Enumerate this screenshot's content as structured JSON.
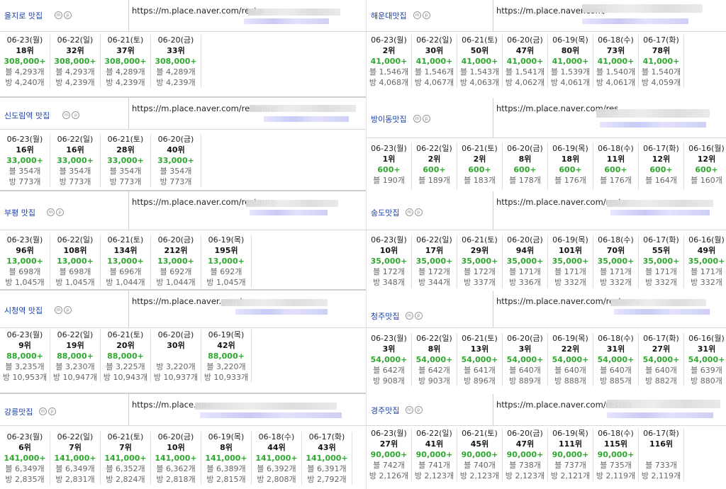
{
  "left": [
    {
      "keyword": "을지로 맛집",
      "url": "https://m.place.naver.com/resta",
      "days": [
        {
          "date": "06-23(월)",
          "rank": "18위",
          "count": "308,000+",
          "blog": "블 4,293개",
          "bang": "방 4,240개"
        },
        {
          "date": "06-22(일)",
          "rank": "32위",
          "count": "308,000+",
          "blog": "블 4,293개",
          "bang": "방 4,239개"
        },
        {
          "date": "06-21(토)",
          "rank": "37위",
          "count": "308,000+",
          "blog": "블 4,289개",
          "bang": "방 4,239개"
        },
        {
          "date": "06-20(금)",
          "rank": "33위",
          "count": "308,000+",
          "blog": "블 4,289개",
          "bang": "방 4,239개"
        }
      ]
    },
    {
      "keyword": "신도림역 맛집",
      "url": "https://m.place.naver.com/restaurar",
      "days": [
        {
          "date": "06-23(월)",
          "rank": "16위",
          "count": "33,000+",
          "blog": "블 354개",
          "bang": "방 773개"
        },
        {
          "date": "06-22(일)",
          "rank": "16위",
          "count": "33,000+",
          "blog": "블 354개",
          "bang": "방 773개"
        },
        {
          "date": "06-21(토)",
          "rank": "28위",
          "count": "33,000+",
          "blog": "블 354개",
          "bang": "방 773개"
        },
        {
          "date": "06-20(금)",
          "rank": "40위",
          "count": "33,000+",
          "blog": "블 354개",
          "bang": "방 773개"
        }
      ]
    },
    {
      "keyword": "부평 맛집",
      "url": "https://m.place.naver.com/restaura",
      "days": [
        {
          "date": "06-23(월)",
          "rank": "96위",
          "count": "13,000+",
          "blog": "블 698개",
          "bang": "방 1,045개"
        },
        {
          "date": "06-22(일)",
          "rank": "108위",
          "count": "13,000+",
          "blog": "블 698개",
          "bang": "방 1,045개"
        },
        {
          "date": "06-21(토)",
          "rank": "134위",
          "count": "13,000+",
          "blog": "블 696개",
          "bang": "방 1,044개"
        },
        {
          "date": "06-20(금)",
          "rank": "212위",
          "count": "13,000+",
          "blog": "블 692개",
          "bang": "방 1,044개"
        },
        {
          "date": "06-19(목)",
          "rank": "195위",
          "count": "13,000+",
          "blog": "블 692개",
          "bang": "방 1,045개"
        }
      ]
    },
    {
      "keyword": "시청역 맛집",
      "url": "https://m.place.naver.com/",
      "days": [
        {
          "date": "06-23(월)",
          "rank": "9위",
          "count": "88,000+",
          "blog": "블 3,235개",
          "bang": "방 10,953개"
        },
        {
          "date": "06-22(일)",
          "rank": "19위",
          "count": "88,000+",
          "blog": "블 3,230개",
          "bang": "방 10,947개"
        },
        {
          "date": "06-21(토)",
          "rank": "20위",
          "count": "88,000+",
          "blog": "블 3,225개",
          "bang": "방 10,943개"
        },
        {
          "date": "06-20(금)",
          "rank": "30위",
          "count": "",
          "blog": "방 3,220개",
          "bang": "방 10,937개"
        },
        {
          "date": "06-19(목)",
          "rank": "42위",
          "count": "88,000+",
          "blog": "블 3,220개",
          "bang": "방 10,933개"
        }
      ]
    },
    {
      "keyword": "강릉맛집",
      "url": "https://m.place.nav",
      "days": [
        {
          "date": "06-23(월)",
          "rank": "6위",
          "count": "141,000+",
          "blog": "블 6,349개",
          "bang": "방 2,835개"
        },
        {
          "date": "06-22(일)",
          "rank": "7위",
          "count": "141,000+",
          "blog": "블 6,349개",
          "bang": "방 2,831개"
        },
        {
          "date": "06-21(토)",
          "rank": "7위",
          "count": "141,000+",
          "blog": "블 6,352개",
          "bang": "방 2,824개"
        },
        {
          "date": "06-20(금)",
          "rank": "10위",
          "count": "141,000+",
          "blog": "블 6,362개",
          "bang": "방 2,818개"
        },
        {
          "date": "06-19(목)",
          "rank": "8위",
          "count": "141,000+",
          "blog": "블 6,389개",
          "bang": "방 2,815개"
        },
        {
          "date": "06-18(수)",
          "rank": "44위",
          "count": "141,000+",
          "blog": "블 6,392개",
          "bang": "방 2,808개"
        },
        {
          "date": "06-17(화)",
          "rank": "43위",
          "count": "141,000+",
          "blog": "블 6,391개",
          "bang": "방 2,792개"
        }
      ]
    }
  ],
  "right": [
    {
      "keyword": "해운대맛집",
      "url": "https://m.place.naver.com/",
      "days": [
        {
          "date": "06-23(월)",
          "rank": "2위",
          "count": "41,000+",
          "blog": "블 1,546개",
          "bang": "방 4,068개"
        },
        {
          "date": "06-22(일)",
          "rank": "30위",
          "count": "41,000+",
          "blog": "블 1,546개",
          "bang": "방 4,067개"
        },
        {
          "date": "06-21(토)",
          "rank": "50위",
          "count": "41,000+",
          "blog": "블 1,543개",
          "bang": "방 4,063개"
        },
        {
          "date": "06-20(금)",
          "rank": "47위",
          "count": "41,000+",
          "blog": "블 1,541개",
          "bang": "방 4,062개"
        },
        {
          "date": "06-19(목)",
          "rank": "80위",
          "count": "41,000+",
          "blog": "블 1,539개",
          "bang": "방 4,061개"
        },
        {
          "date": "06-18(수)",
          "rank": "73위",
          "count": "41,000+",
          "blog": "블 1,540개",
          "bang": "방 4,061개"
        },
        {
          "date": "06-17(화)",
          "rank": "78위",
          "count": "41,000+",
          "blog": "블 1,540개",
          "bang": "방 4,059개"
        }
      ]
    },
    {
      "keyword": "방이동맛집",
      "url": "https://m.place.naver.com/res",
      "days": [
        {
          "date": "06-23(월)",
          "rank": "1위",
          "count": "600+",
          "blog": "블 190개",
          "bang": ""
        },
        {
          "date": "06-22(일)",
          "rank": "2위",
          "count": "600+",
          "blog": "블 189개",
          "bang": ""
        },
        {
          "date": "06-21(토)",
          "rank": "2위",
          "count": "600+",
          "blog": "블 183개",
          "bang": ""
        },
        {
          "date": "06-20(금)",
          "rank": "8위",
          "count": "600+",
          "blog": "블 178개",
          "bang": ""
        },
        {
          "date": "06-19(목)",
          "rank": "18위",
          "count": "600+",
          "blog": "블 176개",
          "bang": ""
        },
        {
          "date": "06-18(수)",
          "rank": "11위",
          "count": "600+",
          "blog": "블 176개",
          "bang": ""
        },
        {
          "date": "06-17(화)",
          "rank": "12위",
          "count": "600+",
          "blog": "블 164개",
          "bang": ""
        },
        {
          "date": "06-16(월)",
          "rank": "12위",
          "count": "600+",
          "blog": "블 160개",
          "bang": ""
        }
      ]
    },
    {
      "keyword": "송도맛집",
      "url": "https://m.place.naver.com/resta",
      "days": [
        {
          "date": "06-23(월)",
          "rank": "10위",
          "count": "35,000+",
          "blog": "블 172개",
          "bang": "방 348개"
        },
        {
          "date": "06-22(일)",
          "rank": "17위",
          "count": "35,000+",
          "blog": "블 172개",
          "bang": "방 344개"
        },
        {
          "date": "06-21(토)",
          "rank": "29위",
          "count": "35,000+",
          "blog": "블 172개",
          "bang": "방 337개"
        },
        {
          "date": "06-20(금)",
          "rank": "94위",
          "count": "35,000+",
          "blog": "블 171개",
          "bang": "방 336개"
        },
        {
          "date": "06-19(목)",
          "rank": "101위",
          "count": "35,000+",
          "blog": "블 171개",
          "bang": "방 332개"
        },
        {
          "date": "06-18(수)",
          "rank": "70위",
          "count": "35,000+",
          "blog": "블 171개",
          "bang": "방 332개"
        },
        {
          "date": "06-17(화)",
          "rank": "55위",
          "count": "35,000+",
          "blog": "블 171개",
          "bang": "방 332개"
        },
        {
          "date": "06-16(월)",
          "rank": "49위",
          "count": "35,000+",
          "blog": "블 171개",
          "bang": "방 332개"
        }
      ]
    },
    {
      "keyword": "청주맛집",
      "url": "https://m.place.naver.com/restaura",
      "days": [
        {
          "date": "06-23(월)",
          "rank": "3위",
          "count": "54,000+",
          "blog": "블 642개",
          "bang": "방 908개"
        },
        {
          "date": "06-22(일)",
          "rank": "8위",
          "count": "54,000+",
          "blog": "블 642개",
          "bang": "방 903개"
        },
        {
          "date": "06-21(토)",
          "rank": "13위",
          "count": "54,000+",
          "blog": "블 641개",
          "bang": "방 896개"
        },
        {
          "date": "06-20(금)",
          "rank": "3위",
          "count": "54,000+",
          "blog": "블 640개",
          "bang": "방 889개"
        },
        {
          "date": "06-19(목)",
          "rank": "22위",
          "count": "54,000+",
          "blog": "블 640개",
          "bang": "방 888개"
        },
        {
          "date": "06-18(수)",
          "rank": "31위",
          "count": "54,000+",
          "blog": "블 640개",
          "bang": "방 885개"
        },
        {
          "date": "06-17(화)",
          "rank": "27위",
          "count": "54,000+",
          "blog": "블 640개",
          "bang": "방 882개"
        },
        {
          "date": "06-16(월)",
          "rank": "31위",
          "count": "54,000+",
          "blog": "블 639개",
          "bang": "방 880개"
        }
      ]
    },
    {
      "keyword": "경주맛집",
      "url": "https://m.place.naver.com/restau",
      "days": [
        {
          "date": "06-23(월)",
          "rank": "27위",
          "count": "90,000+",
          "blog": "블 742개",
          "bang": "방 2,126개"
        },
        {
          "date": "06-22(일)",
          "rank": "41위",
          "count": "90,000+",
          "blog": "블 741개",
          "bang": "방 2,123개"
        },
        {
          "date": "06-21(토)",
          "rank": "45위",
          "count": "90,000+",
          "blog": "블 740개",
          "bang": "방 2,123개"
        },
        {
          "date": "06-20(금)",
          "rank": "47위",
          "count": "90,000+",
          "blog": "블 738개",
          "bang": "방 2,123개"
        },
        {
          "date": "06-19(목)",
          "rank": "111위",
          "count": "90,000+",
          "blog": "블 737개",
          "bang": "방 2,121개"
        },
        {
          "date": "06-18(수)",
          "rank": "115위",
          "count": "90,000+",
          "blog": "블 735개",
          "bang": "방 2,119개"
        },
        {
          "date": "06-17(화)",
          "rank": "116위",
          "count": "",
          "blog": "블 733개",
          "bang": "방 2,119개"
        }
      ]
    }
  ],
  "badge_m": "m",
  "badge_p": "p"
}
